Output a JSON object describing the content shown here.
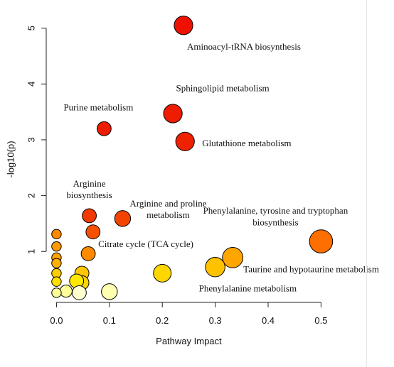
{
  "chart_data": {
    "type": "scatter",
    "title": "",
    "xlabel": "Pathway Impact",
    "ylabel": "-log10(p)",
    "xlim": [
      -0.01,
      0.525
    ],
    "ylim": [
      0.1,
      5.25
    ],
    "x_ticks": [
      "0.0",
      "0.1",
      "0.2",
      "0.3",
      "0.4",
      "0.5"
    ],
    "y_ticks": [
      "1",
      "2",
      "3",
      "4",
      "5"
    ],
    "color_scale": [
      "#FFFFB2",
      "#FFFF4D",
      "#FFD700",
      "#FFA500",
      "#FF6A00",
      "#FF3300",
      "#EE1100"
    ],
    "points": [
      {
        "x": 0.24,
        "y": 5.05,
        "size": 3,
        "color": "#EE1100",
        "label": "Aminoacyl-tRNA biosynthesis"
      },
      {
        "x": 0.22,
        "y": 3.47,
        "size": 3,
        "color": "#EE1C00",
        "label": "Sphingolipid metabolism"
      },
      {
        "x": 0.09,
        "y": 3.2,
        "size": 2,
        "color": "#EE1C00",
        "label": "Purine metabolism"
      },
      {
        "x": 0.243,
        "y": 2.97,
        "size": 3,
        "color": "#EE2200",
        "label": "Glutathione metabolism"
      },
      {
        "x": 0.062,
        "y": 1.64,
        "size": 2,
        "color": "#F23A00",
        "label": "Arginine biosynthesis"
      },
      {
        "x": 0.125,
        "y": 1.59,
        "size": 2.4,
        "color": "#F24400",
        "label": "Arginine and proline metabolism"
      },
      {
        "x": 0.5,
        "y": 1.18,
        "size": 4,
        "color": "#FF6F00",
        "label": "Phenylalanine, tyrosine and tryptophan biosynthesis"
      },
      {
        "x": 0.069,
        "y": 1.35,
        "size": 2,
        "color": "#F55000",
        "label": ""
      },
      {
        "x": 0.06,
        "y": 0.96,
        "size": 2,
        "color": "#FF8A00",
        "label": "Citrate cycle (TCA cycle)"
      },
      {
        "x": 0.333,
        "y": 0.89,
        "size": 3.4,
        "color": "#FFA500",
        "label": "Taurine and hypotaurine metabolism"
      },
      {
        "x": 0.3,
        "y": 0.72,
        "size": 3.2,
        "color": "#FFC200",
        "label": "Phenylalanine metabolism"
      },
      {
        "x": 0.2,
        "y": 0.61,
        "size": 2.8,
        "color": "#FFD700",
        "label": ""
      },
      {
        "x": 0.048,
        "y": 0.61,
        "size": 2,
        "color": "#FFC800",
        "label": ""
      },
      {
        "x": 0.048,
        "y": 0.44,
        "size": 2,
        "color": "#FFD700",
        "label": ""
      },
      {
        "x": 0.038,
        "y": 0.47,
        "size": 2,
        "color": "#FFE800",
        "label": ""
      },
      {
        "x": 0.1,
        "y": 0.28,
        "size": 2.4,
        "color": "#FFFFB2",
        "label": ""
      },
      {
        "x": 0.043,
        "y": 0.26,
        "size": 2,
        "color": "#FFFFD0",
        "label": ""
      },
      {
        "x": 0.018,
        "y": 0.29,
        "size": 1.6,
        "color": "#FFFF99",
        "label": ""
      },
      {
        "x": 0.0,
        "y": 1.31,
        "size": 1,
        "color": "#FF8A00",
        "label": ""
      },
      {
        "x": 0.0,
        "y": 1.09,
        "size": 1,
        "color": "#FF9A00",
        "label": ""
      },
      {
        "x": 0.0,
        "y": 0.89,
        "size": 1,
        "color": "#FFA500",
        "label": ""
      },
      {
        "x": 0.0,
        "y": 0.79,
        "size": 1,
        "color": "#FFB000",
        "label": ""
      },
      {
        "x": 0.0,
        "y": 0.61,
        "size": 1,
        "color": "#FFCE00",
        "label": ""
      },
      {
        "x": 0.0,
        "y": 0.46,
        "size": 1,
        "color": "#FFE000",
        "label": ""
      },
      {
        "x": 0.0,
        "y": 0.26,
        "size": 1,
        "color": "#FFFF99",
        "label": ""
      }
    ]
  }
}
